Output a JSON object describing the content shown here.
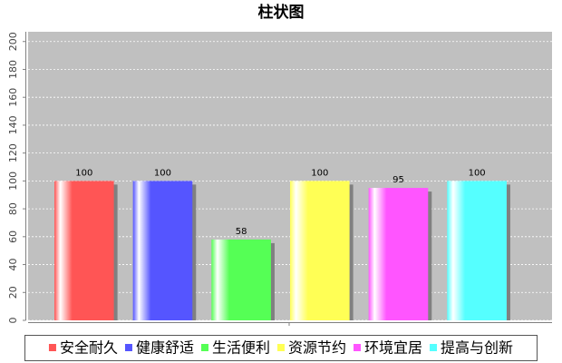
{
  "chart_data": {
    "type": "bar",
    "title": "柱状图",
    "categories": [
      null
    ],
    "series": [
      {
        "name": "安全耐久",
        "color": "#ff5555",
        "values": [
          100
        ]
      },
      {
        "name": "健康舒适",
        "color": "#5555ff",
        "values": [
          100
        ]
      },
      {
        "name": "生活便利",
        "color": "#55ff55",
        "values": [
          58
        ]
      },
      {
        "name": "资源节约",
        "color": "#ffff55",
        "values": [
          100
        ]
      },
      {
        "name": "环境宜居",
        "color": "#ff55ff",
        "values": [
          95
        ]
      },
      {
        "name": "提高与创新",
        "color": "#55ffff",
        "values": [
          100
        ]
      }
    ],
    "ylim": [
      0,
      207
    ],
    "yticks": [
      0,
      20,
      40,
      60,
      80,
      100,
      120,
      140,
      160,
      180,
      200
    ],
    "grid": true,
    "legend": "bottom"
  }
}
